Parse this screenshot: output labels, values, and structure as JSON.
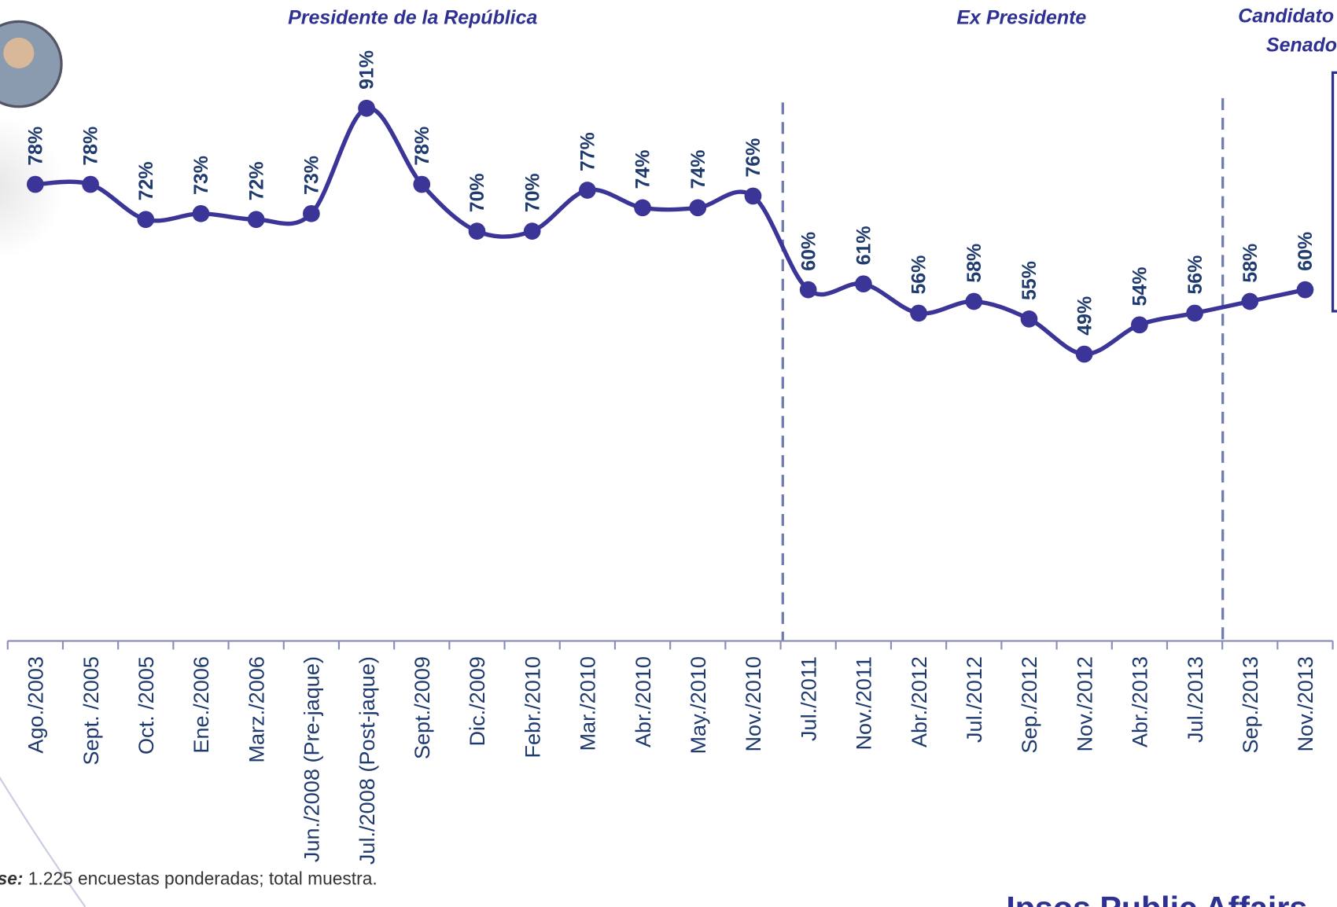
{
  "chart_data": {
    "type": "line",
    "annotations": [
      "Presidente de la República",
      "Ex Presidente",
      "Candidato",
      "Senado"
    ],
    "categories": [
      "Ago./2003",
      "Sept. /2005",
      "Oct. /2005",
      "Ene./2006",
      "Marz./2006",
      "Jun./2008 (Pre-jaque)",
      "Jul./2008 (Post-jaque)",
      "Sept./2009",
      "Dic./2009",
      "Febr./2010",
      "Mar./2010",
      "Abr./2010",
      "May./2010",
      "Nov./2010",
      "Jul./2011",
      "Nov./2011",
      "Abr./2012",
      "Jul./2012",
      "Sep./2012",
      "Nov./2012",
      "Abr./2013",
      "Jul./2013",
      "Sep./2013",
      "Nov./2013"
    ],
    "values": [
      78,
      78,
      72,
      73,
      72,
      73,
      91,
      78,
      70,
      70,
      77,
      74,
      74,
      76,
      60,
      61,
      56,
      58,
      55,
      49,
      54,
      56,
      58,
      60
    ],
    "value_labels": [
      "78%",
      "78%",
      "72%",
      "73%",
      "72%",
      "73%",
      "91%",
      "78%",
      "70%",
      "70%",
      "77%",
      "74%",
      "74%",
      "76%",
      "60%",
      "61%",
      "56%",
      "58%",
      "55%",
      "49%",
      "54%",
      "56%",
      "58%",
      "60%"
    ],
    "color": "#3a3596",
    "ylim": [
      0,
      100
    ],
    "footnote_label": "Base:",
    "footnote": "1.225 encuestas ponderadas; total muestra.",
    "brand": "Ipsos Public Affairs"
  }
}
